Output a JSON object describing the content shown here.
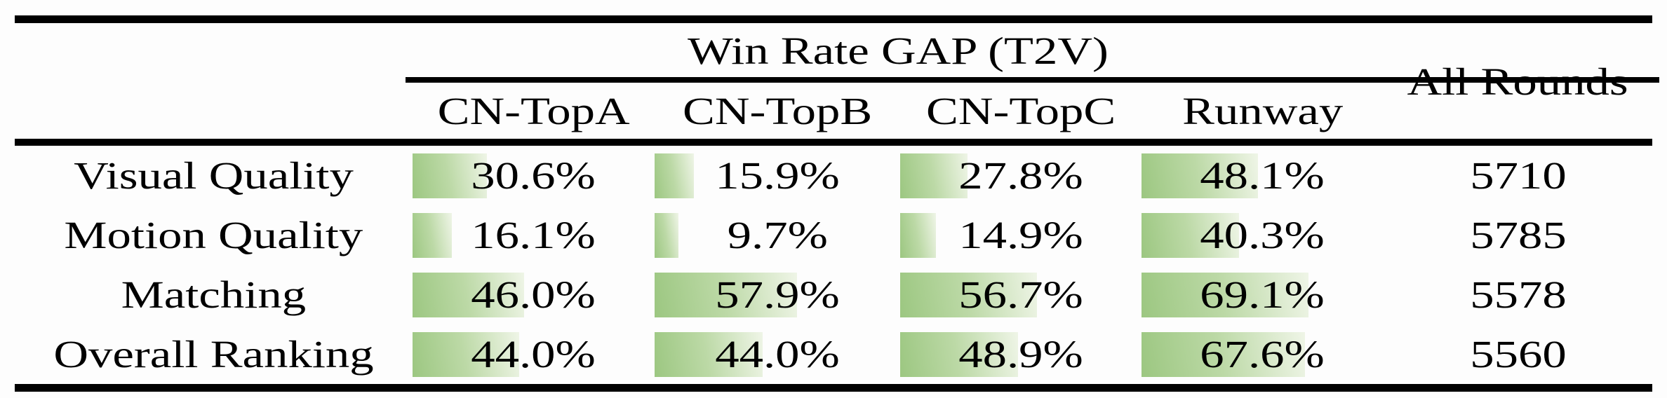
{
  "theme": {
    "page_bg": "#fdfdfd",
    "text_color": "#000000",
    "rule_color": "#000000",
    "bar_gradient_start": "#9cc781",
    "bar_gradient_mid": "#bcd9a6",
    "bar_gradient_end": "#eff5e7"
  },
  "table": {
    "group_header": "Win Rate GAP (T2V)",
    "all_rounds_header": "All Rounds",
    "method_columns": [
      "CN-TopA",
      "CN-TopB",
      "CN-TopC",
      "Runway"
    ],
    "rows": [
      {
        "label": "Visual Quality",
        "values": [
          30.6,
          15.9,
          27.8,
          48.1
        ],
        "display": [
          "30.6%",
          "15.9%",
          "27.8%",
          "48.1%"
        ],
        "all_rounds": "5710"
      },
      {
        "label": "Motion Quality",
        "values": [
          16.1,
          9.7,
          14.9,
          40.3
        ],
        "display": [
          "16.1%",
          "9.7%",
          "14.9%",
          "40.3%"
        ],
        "all_rounds": "5785"
      },
      {
        "label": "Matching",
        "values": [
          46.0,
          57.9,
          56.7,
          69.1
        ],
        "display": [
          "46.0%",
          "57.9%",
          "56.7%",
          "69.1%"
        ],
        "all_rounds": "5578"
      },
      {
        "label": "Overall Ranking",
        "values": [
          44.0,
          44.0,
          48.9,
          67.6
        ],
        "display": [
          "44.0%",
          "44.0%",
          "48.9%",
          "67.6%"
        ],
        "all_rounds": "5560"
      }
    ]
  },
  "chart_data": {
    "type": "table",
    "title": "Win Rate GAP (T2V)",
    "columns": [
      "",
      "CN-TopA",
      "CN-TopB",
      "CN-TopC",
      "Runway",
      "All Rounds"
    ],
    "rows": [
      [
        "Visual Quality",
        "30.6%",
        "15.9%",
        "27.8%",
        "48.1%",
        "5710"
      ],
      [
        "Motion Quality",
        "16.1%",
        "9.7%",
        "14.9%",
        "40.3%",
        "5785"
      ],
      [
        "Matching",
        "46.0%",
        "57.9%",
        "56.7%",
        "69.1%",
        "5578"
      ],
      [
        "Overall Ranking",
        "44.0%",
        "44.0%",
        "48.9%",
        "67.6%",
        "5560"
      ]
    ],
    "notes": "Green data bars behind percentages; bar width proportional to value (100% = full column width), gradient green-to-white left-to-right"
  }
}
